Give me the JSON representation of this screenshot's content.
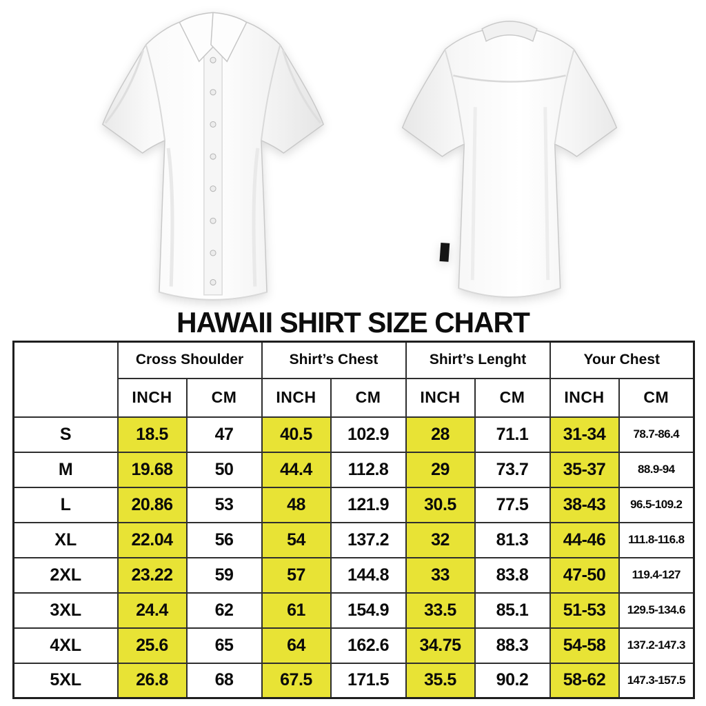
{
  "title": "HAWAII SHIRT SIZE CHART",
  "colors": {
    "highlight_yellow": "#e8e335",
    "table_border": "#2e2e2e",
    "text": "#0a0a0a"
  },
  "table": {
    "unit_headers": {
      "inch": "INCH",
      "cm": "CM"
    },
    "groups": [
      "Cross Shoulder",
      "Shirt’s Chest",
      "Shirt’s Lenght",
      "Your Chest"
    ],
    "rows": [
      {
        "size": "S",
        "values": [
          "18.5",
          "47",
          "40.5",
          "102.9",
          "28",
          "71.1",
          "31-34",
          "78.7-86.4"
        ]
      },
      {
        "size": "M",
        "values": [
          "19.68",
          "50",
          "44.4",
          "112.8",
          "29",
          "73.7",
          "35-37",
          "88.9-94"
        ]
      },
      {
        "size": "L",
        "values": [
          "20.86",
          "53",
          "48",
          "121.9",
          "30.5",
          "77.5",
          "38-43",
          "96.5-109.2"
        ]
      },
      {
        "size": "XL",
        "values": [
          "22.04",
          "56",
          "54",
          "137.2",
          "32",
          "81.3",
          "44-46",
          "111.8-116.8"
        ]
      },
      {
        "size": "2XL",
        "values": [
          "23.22",
          "59",
          "57",
          "144.8",
          "33",
          "83.8",
          "47-50",
          "119.4-127"
        ]
      },
      {
        "size": "3XL",
        "values": [
          "24.4",
          "62",
          "61",
          "154.9",
          "33.5",
          "85.1",
          "51-53",
          "129.5-134.6"
        ]
      },
      {
        "size": "4XL",
        "values": [
          "25.6",
          "65",
          "64",
          "162.6",
          "34.75",
          "88.3",
          "54-58",
          "137.2-147.3"
        ]
      },
      {
        "size": "5XL",
        "values": [
          "26.8",
          "68",
          "67.5",
          "171.5",
          "35.5",
          "90.2",
          "58-62",
          "147.3-157.5"
        ]
      }
    ]
  }
}
